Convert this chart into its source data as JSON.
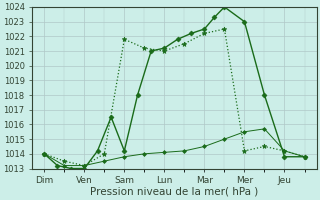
{
  "x_labels": [
    "Dim",
    "Ven",
    "Sam",
    "Lun",
    "Mar",
    "Mer",
    "Jeu"
  ],
  "n_days": 7,
  "line1_solid": {
    "x": [
      0,
      0.33,
      0.67,
      1.0,
      1.33,
      1.67,
      2.0,
      2.33,
      2.67,
      3.0,
      3.33,
      3.67,
      4.0,
      4.25,
      4.5,
      5.0,
      5.5,
      6.0,
      6.5
    ],
    "y": [
      1014,
      1013.2,
      1013.0,
      1013.0,
      1014.2,
      1016.5,
      1014.2,
      1018.0,
      1021.0,
      1021.2,
      1021.8,
      1022.2,
      1022.5,
      1023.3,
      1024.0,
      1023.0,
      1018.0,
      1013.8,
      1013.8
    ],
    "color": "#1a6b1a",
    "marker": "D",
    "markersize": 2.5,
    "linestyle": "-",
    "linewidth": 1.0
  },
  "line2_dotted": {
    "x": [
      0,
      0.5,
      1.0,
      1.5,
      2.0,
      2.5,
      3.0,
      3.5,
      4.0,
      4.5,
      5.0,
      5.5,
      6.0,
      6.5
    ],
    "y": [
      1014,
      1013.5,
      1013.2,
      1014.0,
      1021.8,
      1021.2,
      1021.0,
      1021.5,
      1022.2,
      1022.5,
      1014.2,
      1014.5,
      1014.2,
      1013.8
    ],
    "color": "#1a6b1a",
    "marker": "*",
    "markersize": 3.5,
    "linestyle": ":",
    "linewidth": 0.9
  },
  "line3_flat": {
    "x": [
      0,
      0.5,
      1.0,
      1.5,
      2.0,
      2.5,
      3.0,
      3.5,
      4.0,
      4.5,
      5.0,
      5.5,
      6.0,
      6.5
    ],
    "y": [
      1014,
      1013.2,
      1013.2,
      1013.5,
      1013.8,
      1014.0,
      1014.1,
      1014.2,
      1014.5,
      1015.0,
      1015.5,
      1015.7,
      1014.2,
      1013.8
    ],
    "color": "#1a6b1a",
    "marker": "D",
    "markersize": 2.0,
    "linestyle": "-",
    "linewidth": 0.7
  },
  "ylim": [
    1013,
    1024
  ],
  "yticks": [
    1013,
    1014,
    1015,
    1016,
    1017,
    1018,
    1019,
    1020,
    1021,
    1022,
    1023,
    1024
  ],
  "xlabel": "Pression niveau de la mer( hPa )",
  "xlabel_fontsize": 7.5,
  "bg_color": "#cceee8",
  "grid_color": "#b0c8c8",
  "line_color": "#1a6b1a",
  "tick_color": "#334433",
  "axis_color": "#334433",
  "tick_fontsize": 6.0,
  "xtick_fontsize": 6.5
}
